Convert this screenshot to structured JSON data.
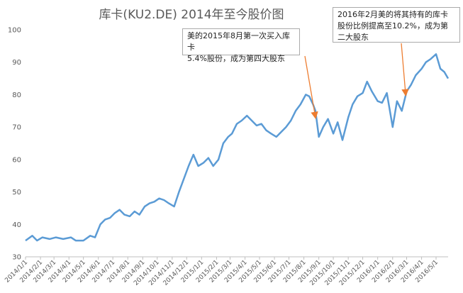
{
  "chart_data": {
    "type": "line",
    "title": "库卡(KU2.DE) 2014年至今股价图",
    "xlabel": "",
    "ylabel": "",
    "ylim": [
      30,
      100
    ],
    "yticks": [
      30,
      40,
      50,
      60,
      70,
      80,
      90,
      100
    ],
    "xlim": [
      "2014-01-01",
      "2016-05-26"
    ],
    "xtick_labels": [
      "2014/1/1",
      "2014/2/1",
      "2014/3/1",
      "2014/4/1",
      "2014/5/1",
      "2014/6/1",
      "2014/7/1",
      "2014/8/1",
      "2014/9/1",
      "2014/10/1",
      "2014/11/1",
      "2014/12/1",
      "2015/1/1",
      "2015/2/1",
      "2015/3/1",
      "2015/4/1",
      "2015/5/1",
      "2015/6/1",
      "2015/7/1",
      "2015/8/1",
      "2015/9/1",
      "2015/10/1",
      "2015/11/1",
      "2015/12/1",
      "2016/1/1",
      "2016/2/1",
      "2016/3/1",
      "2016/4/1",
      "2016/5/1"
    ],
    "grid": false,
    "legend": "none",
    "colors": {
      "line": "#5b9bd5",
      "arrow": "#ed7d31",
      "axis": "#bfbfbf"
    },
    "series": [
      {
        "name": "",
        "x": [
          "2014-01-01",
          "2014-01-15",
          "2014-01-25",
          "2014-02-05",
          "2014-02-20",
          "2014-03-05",
          "2014-03-20",
          "2014-04-05",
          "2014-04-15",
          "2014-05-01",
          "2014-05-15",
          "2014-05-25",
          "2014-06-05",
          "2014-06-15",
          "2014-06-25",
          "2014-07-05",
          "2014-07-15",
          "2014-07-25",
          "2014-08-05",
          "2014-08-15",
          "2014-08-25",
          "2014-09-05",
          "2014-09-15",
          "2014-09-25",
          "2014-10-05",
          "2014-10-15",
          "2014-10-25",
          "2014-11-05",
          "2014-11-15",
          "2014-11-25",
          "2014-12-05",
          "2014-12-15",
          "2014-12-25",
          "2015-01-05",
          "2015-01-15",
          "2015-01-25",
          "2015-02-05",
          "2015-02-15",
          "2015-02-25",
          "2015-03-05",
          "2015-03-15",
          "2015-03-25",
          "2015-04-05",
          "2015-04-15",
          "2015-04-25",
          "2015-05-05",
          "2015-05-15",
          "2015-05-25",
          "2015-06-05",
          "2015-06-15",
          "2015-06-25",
          "2015-07-05",
          "2015-07-15",
          "2015-07-25",
          "2015-08-05",
          "2015-08-12",
          "2015-08-20",
          "2015-08-25",
          "2015-09-01",
          "2015-09-10",
          "2015-09-20",
          "2015-10-01",
          "2015-10-10",
          "2015-10-20",
          "2015-11-01",
          "2015-11-10",
          "2015-11-20",
          "2015-12-01",
          "2015-12-10",
          "2015-12-20",
          "2016-01-01",
          "2016-01-10",
          "2016-01-20",
          "2016-02-01",
          "2016-02-10",
          "2016-02-20",
          "2016-03-01",
          "2016-03-10",
          "2016-03-20",
          "2016-04-01",
          "2016-04-10",
          "2016-04-20",
          "2016-05-01",
          "2016-05-10",
          "2016-05-18",
          "2016-05-26"
        ],
        "values": [
          35,
          36.5,
          35,
          36,
          35.5,
          36,
          35.5,
          36,
          35,
          35,
          36.5,
          36,
          40,
          41.5,
          42,
          43.5,
          44.5,
          43,
          42.5,
          44,
          43,
          45.5,
          46.5,
          47,
          48,
          47.5,
          46.5,
          45.5,
          50,
          54,
          58,
          61.5,
          58,
          59,
          60.5,
          58,
          60,
          65,
          67,
          68,
          71,
          72,
          73.5,
          72,
          70.5,
          71,
          69,
          68,
          67,
          68.5,
          70,
          72,
          75,
          77,
          80,
          79.5,
          77,
          75,
          67,
          70,
          72.5,
          68,
          71.5,
          66,
          73,
          77,
          79.5,
          80.5,
          84,
          81,
          78,
          77.5,
          80.5,
          70,
          78,
          75,
          81,
          83,
          86,
          88,
          90,
          91,
          92.5,
          88,
          87,
          85
        ]
      }
    ],
    "annotations": [
      {
        "text_lines": [
          "美的2015年8月第一次买入库卡",
          "5.4%股份，成为第四大股东"
        ],
        "target_x": "2015-08-25",
        "target_y": 73
      },
      {
        "text_lines": [
          "2016年2月美的将其持有的库卡",
          "股份比例提高至10.2%，成为第",
          "二大股东"
        ],
        "target_x": "2016-02-28",
        "target_y": 80
      }
    ]
  }
}
